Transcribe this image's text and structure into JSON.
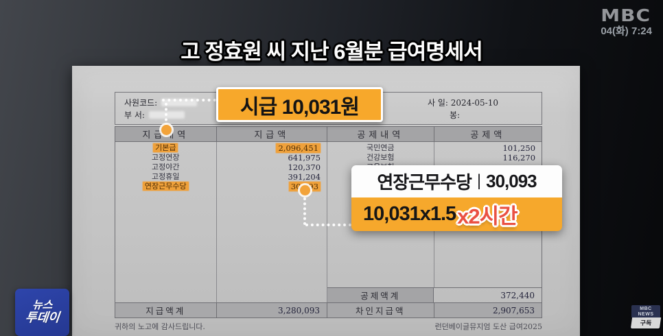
{
  "broadcast": {
    "channel": "MBC",
    "datetime": "04(화) 7:24",
    "headline": "고 정효원 씨 지난 6월분 급여명세서",
    "program_badge": {
      "line1": "뉴스",
      "line2": "투데이"
    },
    "subscribe_badge": {
      "channel_line1": "MBC",
      "channel_line2": "NEWS",
      "label": "구독"
    }
  },
  "callouts": {
    "hourly_wage": "시급 10,031원",
    "overtime": {
      "label": "연장근무수당",
      "separator": "|",
      "value": "30,093",
      "formula": "10,031x1.5",
      "hours_tag": "x2시간"
    }
  },
  "payslip": {
    "info": {
      "employee_code_label": "사원코드:",
      "department_label": "부      서:",
      "hire_date_label": "사 일:",
      "hire_date_value": "2024-05-10",
      "grade_label": "봉:"
    },
    "table": {
      "headers": [
        "지급내역",
        "지급액",
        "공제내역",
        "공제액"
      ],
      "payment_rows": [
        {
          "label": "기본급",
          "value": "2,096,451",
          "highlight": true
        },
        {
          "label": "고정연장",
          "value": "641,975",
          "highlight": false
        },
        {
          "label": "고정야간",
          "value": "120,370",
          "highlight": false
        },
        {
          "label": "고정휴일",
          "value": "391,204",
          "highlight": false
        },
        {
          "label": "연장근무수당",
          "value": "30,093",
          "highlight": true
        }
      ],
      "deduction_rows": [
        {
          "label": "국민연금",
          "value": "101,250"
        },
        {
          "label": "건강보험",
          "value": "116,270"
        },
        {
          "label": "고용보험",
          "value": ""
        }
      ],
      "deduction_total_label": "공제액계",
      "deduction_total_value": "372,440",
      "payment_total_label": "지급액계",
      "payment_total_value": "3,280,093",
      "net_pay_label": "차인지급액",
      "net_pay_value": "2,907,653"
    },
    "footer_left": "귀하의 노고에 감사드립니다.",
    "footer_right": "런던베이글뮤지엄 도산 급여2025"
  },
  "colors": {
    "callout_orange": "#f6a82c",
    "highlight_orange": "#efa13b",
    "hours_red": "#ea5143",
    "badge_blue": "#2a3f9e",
    "paper_gray": "#c9c9c9"
  }
}
